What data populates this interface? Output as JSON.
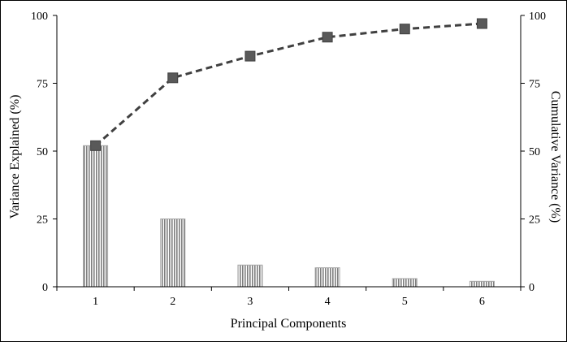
{
  "chart_data": {
    "type": "bar",
    "title": "",
    "xlabel": "Principal Components",
    "ylabel": "Variance Explained (%)",
    "y2label": "Cumulative Variance (%)",
    "categories": [
      "1",
      "2",
      "3",
      "4",
      "5",
      "6"
    ],
    "ylim": [
      0,
      100
    ],
    "y2lim": [
      0,
      100
    ],
    "yticks": [
      "0",
      "25",
      "50",
      "75",
      "100"
    ],
    "y2ticks": [
      "0",
      "25",
      "50",
      "75",
      "100"
    ],
    "grid": false,
    "series": [
      {
        "type": "bar",
        "axis": "left",
        "values": [
          52,
          25,
          8,
          7,
          3,
          2
        ],
        "color": "#7f7f7f",
        "pattern": "vertical-stripes"
      },
      {
        "type": "line",
        "axis": "right",
        "values": [
          52,
          77,
          85,
          92,
          95,
          97
        ],
        "color": "#404040",
        "line_style": "dashed",
        "marker": "square"
      }
    ]
  }
}
